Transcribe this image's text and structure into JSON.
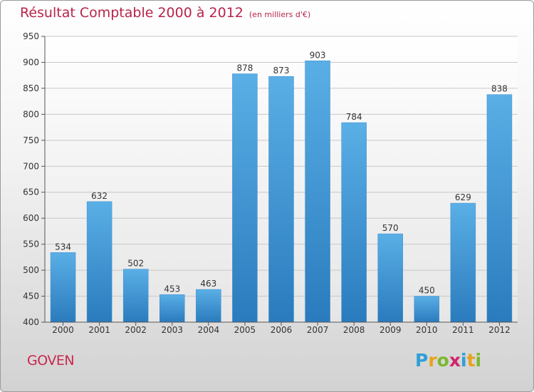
{
  "title": "Résultat Comptable 2000 à 2012",
  "subtitle": "(en milliers d'€)",
  "commune": "GOVEN",
  "logo": {
    "letters": [
      "P",
      "r",
      "o",
      "x",
      "i",
      "t",
      "i"
    ],
    "colors": [
      "#2e9fd8",
      "#e8a21c",
      "#7cb82f",
      "#d0246b",
      "#2e9fd8",
      "#e8a21c",
      "#7cb82f"
    ]
  },
  "colors": {
    "bar_top": "#5aafe6",
    "bar_bottom": "#2a7bbd",
    "title": "#b8234a",
    "grid": "#c8c8c8",
    "axis": "#555555"
  },
  "chart_data": {
    "type": "bar",
    "title": "Résultat Comptable 2000 à 2012",
    "subtitle": "(en milliers d'€)",
    "categories": [
      "2000",
      "2001",
      "2002",
      "2003",
      "2004",
      "2005",
      "2006",
      "2007",
      "2008",
      "2009",
      "2010",
      "2011",
      "2012"
    ],
    "values": [
      534,
      632,
      502,
      453,
      463,
      878,
      873,
      903,
      784,
      570,
      450,
      629,
      838
    ],
    "yticks": [
      400,
      450,
      500,
      550,
      600,
      650,
      700,
      750,
      800,
      850,
      900,
      950
    ],
    "ylim": [
      400,
      950
    ],
    "xlabel": "",
    "ylabel": "",
    "grid": true
  }
}
